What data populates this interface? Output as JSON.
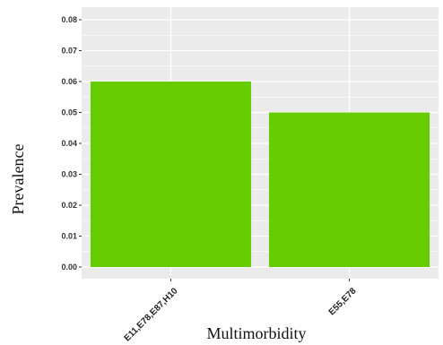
{
  "chart_data": {
    "type": "bar",
    "categories": [
      "E11,E78,E87,H10",
      "E55,E78"
    ],
    "values": [
      0.06,
      0.05
    ],
    "xlabel": "Multimorbidity",
    "ylabel": "Prevalence",
    "ylim": [
      0,
      0.08
    ],
    "yticks": [
      "0.00",
      "0.01",
      "0.02",
      "0.03",
      "0.04",
      "0.05",
      "0.06",
      "0.07",
      "0.08"
    ],
    "grid": true,
    "legend": "none",
    "colors": {
      "bar": "#66cc00",
      "panel": "#ebebeb",
      "grid": "#ffffff"
    }
  }
}
